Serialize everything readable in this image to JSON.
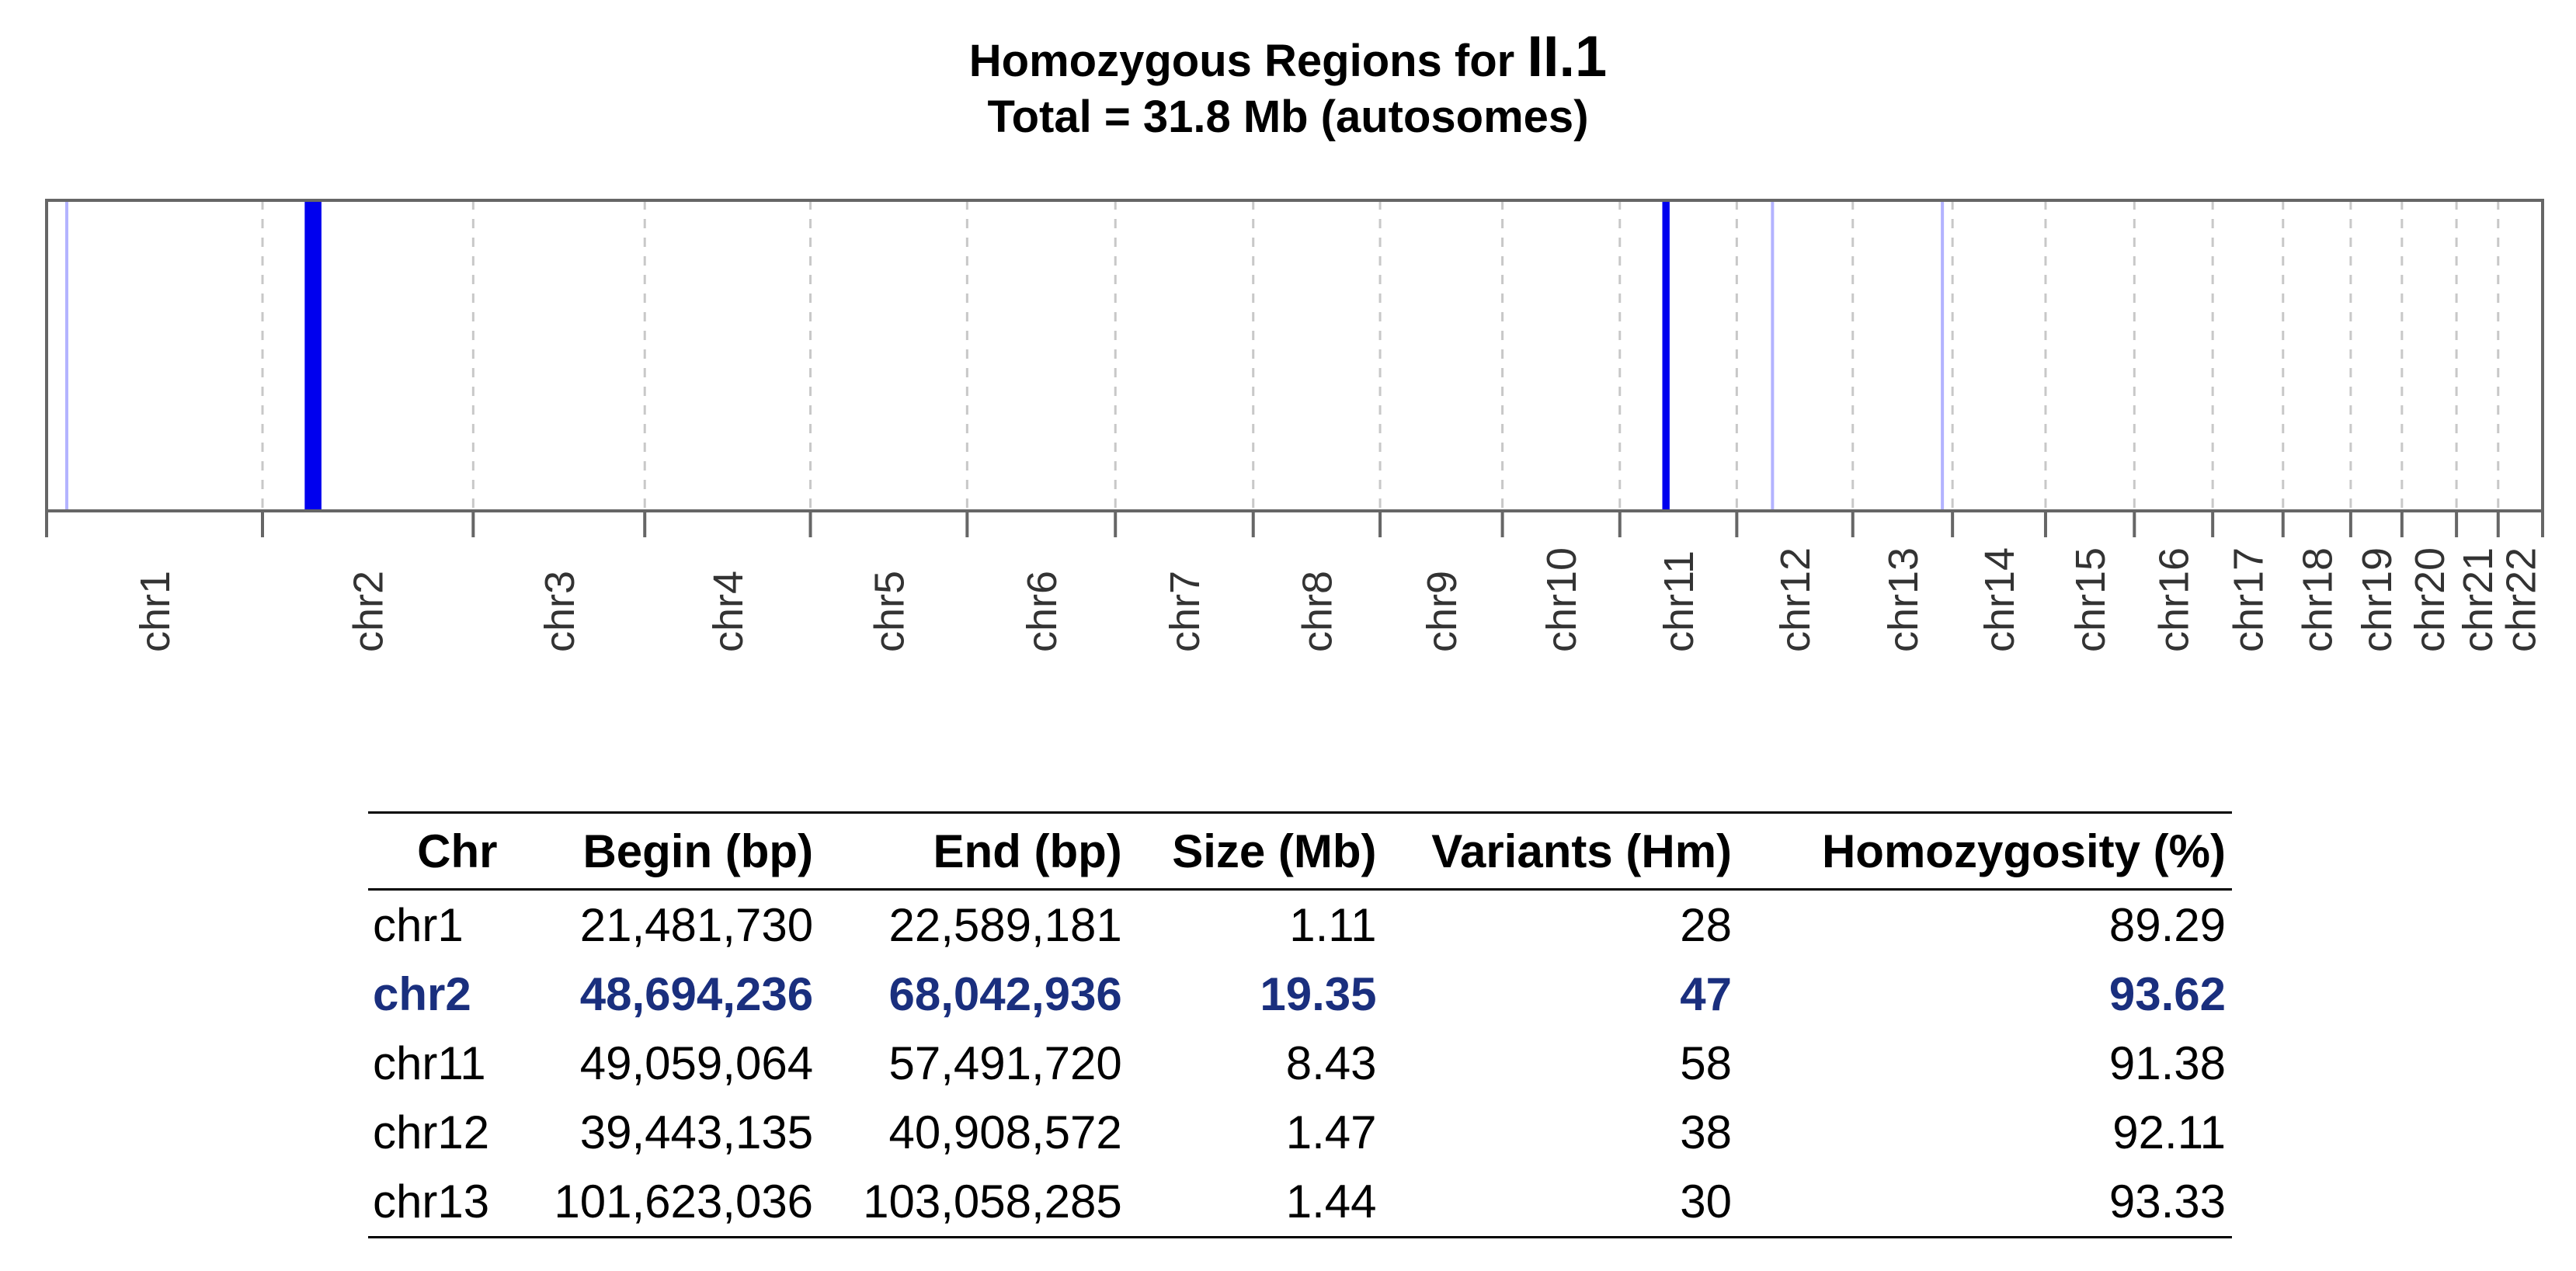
{
  "chart_data": {
    "type": "table",
    "title": "Homozygous Regions for",
    "title_id": "II.1",
    "subtitle": "Total = 31.8 Mb (autosomes)",
    "chromosomes": [
      "chr1",
      "chr2",
      "chr3",
      "chr4",
      "chr5",
      "chr6",
      "chr7",
      "chr8",
      "chr9",
      "chr10",
      "chr11",
      "chr12",
      "chr13",
      "chr14",
      "chr15",
      "chr16",
      "chr17",
      "chr18",
      "chr19",
      "chr20",
      "chr21",
      "chr22"
    ],
    "genome_boundaries_mb": [
      0,
      249.2,
      492.4,
      690.4,
      881.6,
      1062.5,
      1233.6,
      1392.7,
      1539.1,
      1680.3,
      1815.8,
      1950.8,
      2084.7,
      2199.8,
      2307.2,
      2409.7,
      2500.1,
      2581.3,
      2659.4,
      2718.5,
      2781.5,
      2829.6,
      2880.9
    ],
    "regions": [
      {
        "chr": "chr1",
        "begin": "21,481,730",
        "end": "22,589,181",
        "size": "1.11",
        "variants": "28",
        "homozygosity": "89.29",
        "highlight": false,
        "start_mb": 21.48,
        "end_mb": 22.59,
        "color": "#b3b3ff"
      },
      {
        "chr": "chr2",
        "begin": "48,694,236",
        "end": "68,042,936",
        "size": "19.35",
        "variants": "47",
        "homozygosity": "93.62",
        "highlight": true,
        "start_mb": 48.69,
        "end_mb": 68.04,
        "color": "#0000ee"
      },
      {
        "chr": "chr11",
        "begin": "49,059,064",
        "end": "57,491,720",
        "size": "8.43",
        "variants": "58",
        "homozygosity": "91.38",
        "highlight": false,
        "start_mb": 49.06,
        "end_mb": 57.49,
        "color": "#0000ee"
      },
      {
        "chr": "chr12",
        "begin": "39,443,135",
        "end": "40,908,572",
        "size": "1.47",
        "variants": "38",
        "homozygosity": "92.11",
        "highlight": false,
        "start_mb": 39.44,
        "end_mb": 40.91,
        "color": "#b3b3ff"
      },
      {
        "chr": "chr13",
        "begin": "101,623,036",
        "end": "103,058,285",
        "size": "1.44",
        "variants": "30",
        "homozygosity": "93.33",
        "highlight": false,
        "start_mb": 101.62,
        "end_mb": 103.06,
        "color": "#b3b3ff"
      }
    ],
    "table_headers": [
      "Chr",
      "Begin (bp)",
      "End (bp)",
      "Size (Mb)",
      "Variants (Hm)",
      "Homozygosity (%)"
    ],
    "grid": true,
    "colors": {
      "frame": "#666666",
      "grid": "#c8c8c8",
      "highlight_text": "#1a2f7e"
    }
  }
}
